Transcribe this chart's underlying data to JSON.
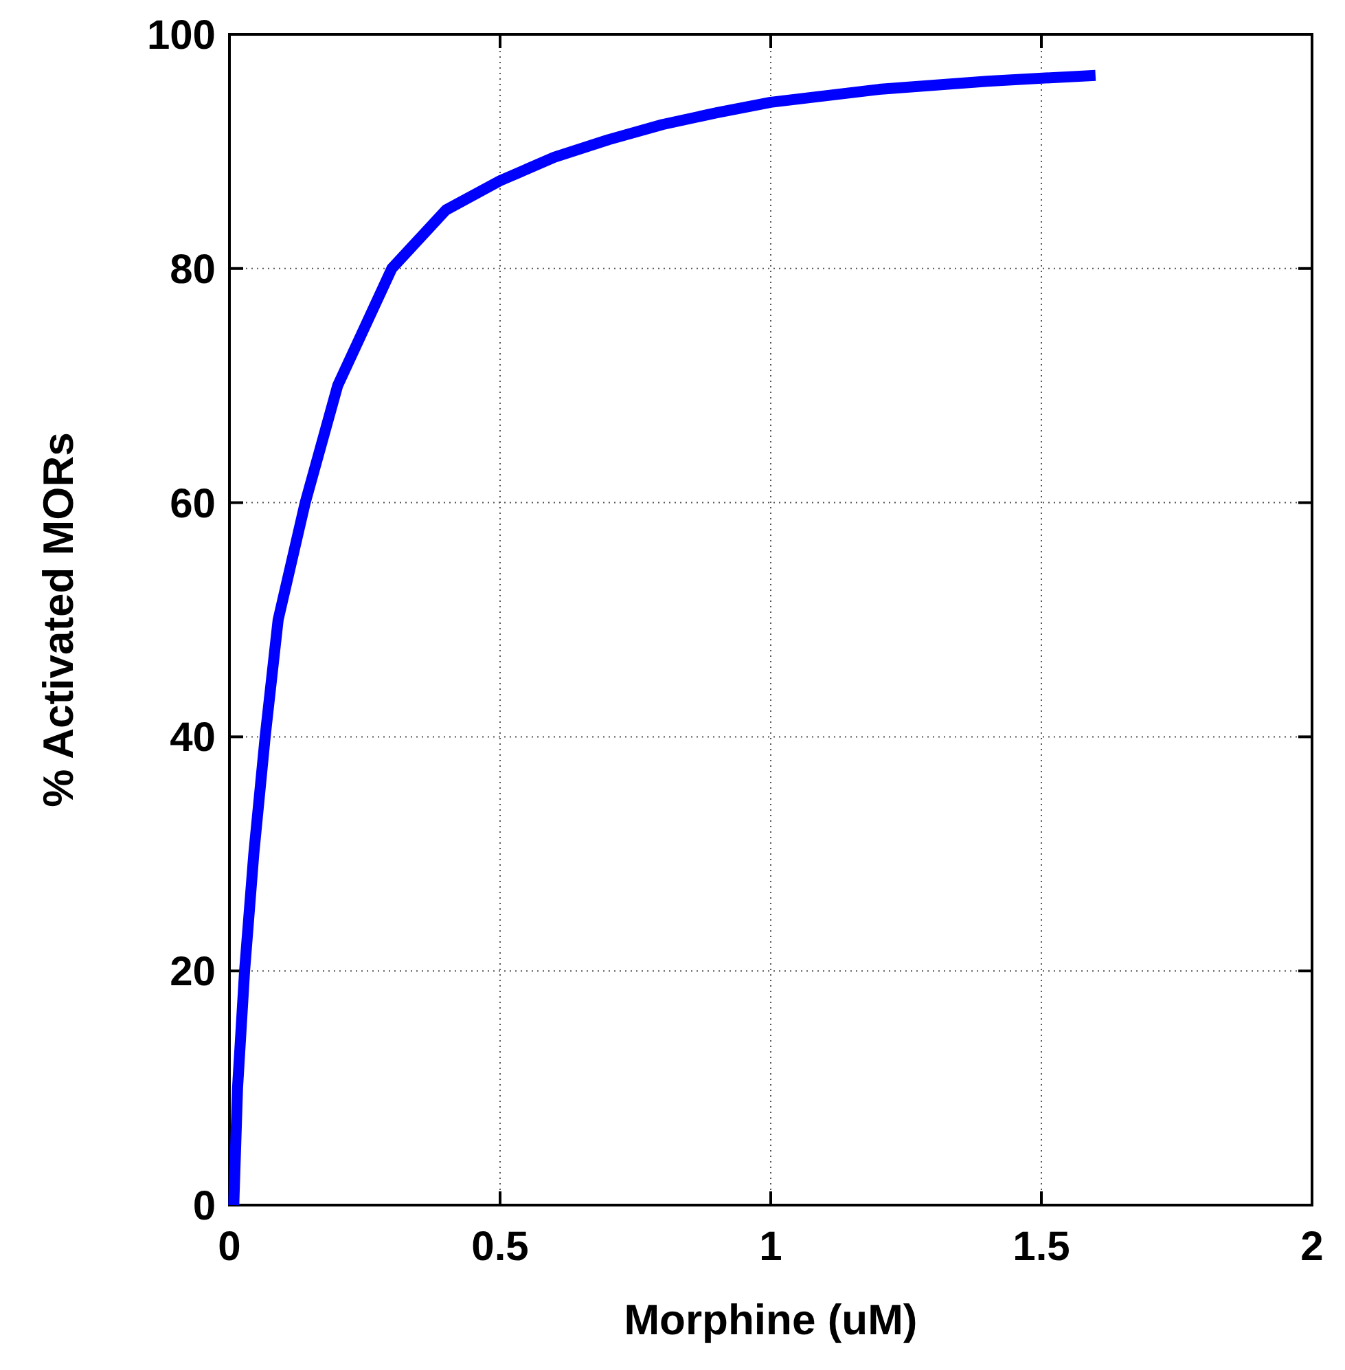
{
  "chart_data": {
    "type": "line",
    "xlabel": "Morphine (uM)",
    "ylabel": "% Activated MORs",
    "xlim": [
      0,
      2
    ],
    "xticks": [
      0,
      0.5,
      1,
      1.5,
      2
    ],
    "ylim": [
      0,
      100
    ],
    "yticks": [
      0,
      20,
      40,
      60,
      80,
      100
    ],
    "grid": true,
    "line_style": "solid",
    "marker": "none",
    "series": [
      {
        "color": "#0000ff",
        "x": [
          0.008,
          0.015,
          0.028,
          0.045,
          0.066,
          0.09,
          0.14,
          0.2,
          0.3,
          0.4,
          0.5,
          0.6,
          0.7,
          0.8,
          0.9,
          1.0,
          1.2,
          1.4,
          1.6
        ],
        "values": [
          0,
          10,
          20,
          30,
          40,
          50,
          60,
          70,
          80,
          85,
          87.5,
          89.5,
          91,
          92.3,
          93.3,
          94.2,
          95.3,
          96,
          96.5
        ]
      }
    ]
  }
}
